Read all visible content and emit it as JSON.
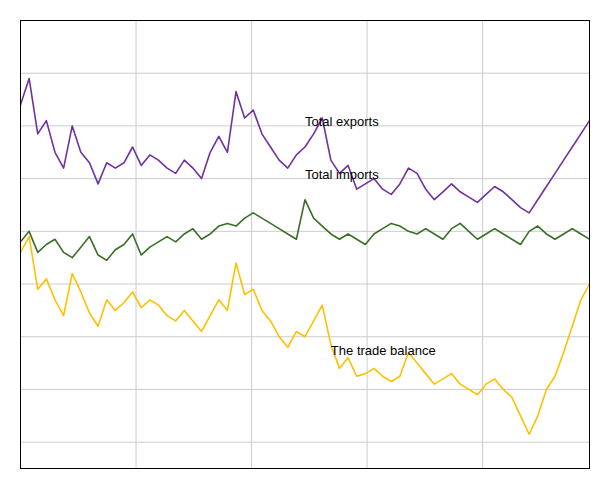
{
  "chart_data": {
    "type": "line",
    "x": [
      0,
      1,
      2,
      3,
      4,
      5,
      6,
      7,
      8,
      9,
      10,
      11,
      12,
      13,
      14,
      15,
      16,
      17,
      18,
      19,
      20,
      21,
      22,
      23,
      24,
      25,
      26,
      27,
      28,
      29,
      30,
      31,
      32,
      33,
      34,
      35,
      36,
      37,
      38,
      39,
      40,
      41,
      42,
      43,
      44,
      45,
      46,
      47,
      48,
      49,
      50,
      51,
      52,
      53,
      54,
      55,
      56,
      57,
      58,
      59,
      60,
      61,
      62,
      63,
      64,
      65,
      66
    ],
    "series": [
      {
        "name": "Total exports",
        "color": "#7030A0",
        "values": [
          108,
          118,
          97,
          102,
          90,
          84,
          100,
          90,
          86,
          78,
          86,
          84,
          86,
          92,
          85,
          89,
          87,
          84,
          82,
          87,
          84,
          80,
          90,
          96,
          90,
          113,
          103,
          106,
          97,
          92,
          87,
          84,
          89,
          92,
          97,
          103,
          87,
          82,
          85,
          76,
          78,
          80,
          76,
          74,
          78,
          84,
          82,
          76,
          72,
          75,
          78,
          75,
          73,
          71,
          74,
          77,
          75,
          72,
          69,
          67,
          72,
          77,
          82,
          87,
          92,
          97,
          102
        ]
      },
      {
        "name": "Total imports",
        "color": "#3a6e28",
        "values": [
          56,
          60,
          52,
          55,
          57,
          52,
          50,
          54,
          58,
          51,
          49,
          53,
          55,
          59,
          51,
          54,
          56,
          58,
          56,
          59,
          61,
          57,
          59,
          62,
          63,
          62,
          65,
          67,
          65,
          63,
          61,
          59,
          57,
          72,
          65,
          62,
          59,
          57,
          59,
          57,
          55,
          59,
          61,
          63,
          62,
          60,
          59,
          61,
          59,
          57,
          61,
          63,
          60,
          57,
          59,
          61,
          59,
          57,
          55,
          60,
          62,
          59,
          57,
          59,
          61,
          59,
          57
        ]
      },
      {
        "name": "The trade balance",
        "color": "#FFC000",
        "values": [
          52,
          58,
          38,
          42,
          34,
          28,
          44,
          37,
          29,
          24,
          34,
          30,
          33,
          37,
          31,
          34,
          32,
          28,
          26,
          30,
          26,
          22,
          28,
          34,
          30,
          48,
          36,
          38,
          30,
          26,
          20,
          16,
          22,
          20,
          26,
          32,
          17,
          8,
          12,
          5,
          6,
          8,
          5,
          3,
          5,
          14,
          10,
          6,
          2,
          4,
          6,
          2,
          0,
          -2,
          2,
          4,
          0,
          -3,
          -10,
          -17,
          -10,
          0,
          5,
          14,
          24,
          34,
          40
        ]
      }
    ],
    "annotations": [
      {
        "text": "Total exports",
        "x": 33,
        "y": 100
      },
      {
        "text": "Total imports",
        "x": 33,
        "y": 80
      },
      {
        "text": "The trade balance",
        "x": 36,
        "y": 13
      }
    ],
    "xlim": [
      0,
      66
    ],
    "ylim": [
      -30,
      140
    ],
    "xticks": [
      13.4,
      26.8,
      40.2,
      53.6
    ],
    "yticks": [
      -20,
      0,
      20,
      40,
      60,
      80,
      100,
      120,
      140
    ],
    "grid": true,
    "tick_labels": false
  }
}
